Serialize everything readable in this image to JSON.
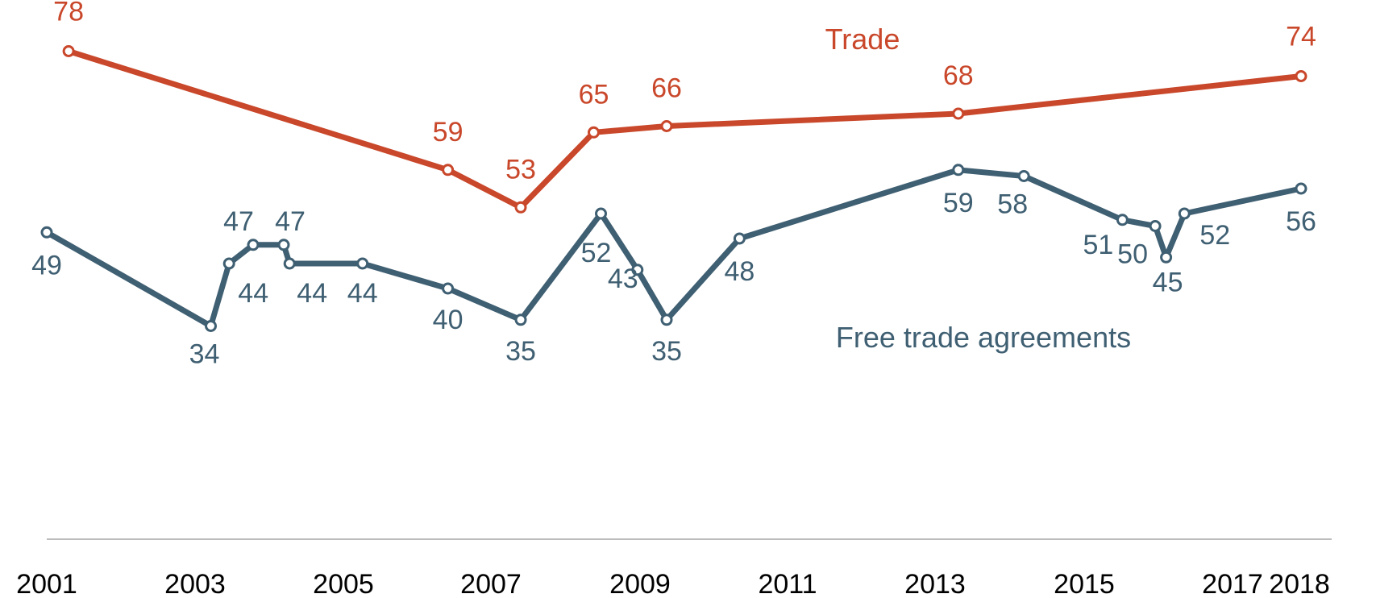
{
  "chart_data": {
    "type": "line",
    "title": "",
    "xlabel": "",
    "ylabel": "",
    "xlim": [
      2000.95,
      2018.35
    ],
    "ylim": [
      0,
      85
    ],
    "grid": false,
    "x_ticks": [
      "2001",
      "2003",
      "2005",
      "2007",
      "2009",
      "2011",
      "2013",
      "2015",
      "2017",
      "2018"
    ],
    "series": [
      {
        "name": "Trade",
        "color": "#c9472a",
        "points": [
          {
            "x": 2001.3,
            "y": 78,
            "label": "78"
          },
          {
            "x": 2006.5,
            "y": 59,
            "label": "59"
          },
          {
            "x": 2007.5,
            "y": 53,
            "label": "53"
          },
          {
            "x": 2008.5,
            "y": 65,
            "label": "65"
          },
          {
            "x": 2009.5,
            "y": 66,
            "label": "66"
          },
          {
            "x": 2013.5,
            "y": 68,
            "label": "68"
          },
          {
            "x": 2018.2,
            "y": 74,
            "label": "74"
          }
        ]
      },
      {
        "name": "Free trade agreements",
        "color": "#3f5f72",
        "points": [
          {
            "x": 2001.0,
            "y": 49,
            "label": "49"
          },
          {
            "x": 2003.25,
            "y": 34,
            "label": "34"
          },
          {
            "x": 2003.5,
            "y": 44,
            "label": "44"
          },
          {
            "x": 2003.83,
            "y": 47,
            "label": "47"
          },
          {
            "x": 2004.25,
            "y": 47,
            "label": "47"
          },
          {
            "x": 2004.33,
            "y": 44,
            "label": "44"
          },
          {
            "x": 2005.33,
            "y": 44,
            "label": "44"
          },
          {
            "x": 2006.5,
            "y": 40,
            "label": "40"
          },
          {
            "x": 2007.5,
            "y": 35,
            "label": "35"
          },
          {
            "x": 2008.6,
            "y": 52,
            "label": "52"
          },
          {
            "x": 2009.1,
            "y": 43,
            "label": "43"
          },
          {
            "x": 2009.5,
            "y": 35,
            "label": "35"
          },
          {
            "x": 2010.5,
            "y": 48,
            "label": "48"
          },
          {
            "x": 2013.5,
            "y": 59,
            "label": "59"
          },
          {
            "x": 2014.4,
            "y": 58,
            "label": "58"
          },
          {
            "x": 2015.75,
            "y": 51,
            "label": "51"
          },
          {
            "x": 2016.2,
            "y": 50,
            "label": "50"
          },
          {
            "x": 2016.35,
            "y": 45,
            "label": "45"
          },
          {
            "x": 2016.6,
            "y": 52,
            "label": "52"
          },
          {
            "x": 2018.2,
            "y": 56,
            "label": "56"
          }
        ]
      }
    ]
  }
}
